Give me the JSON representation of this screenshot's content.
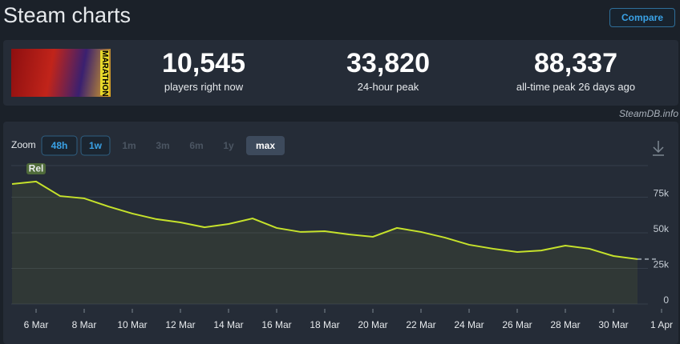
{
  "header": {
    "title": "Steam charts",
    "compare": "Compare",
    "source": "SteamDB.info",
    "game_logo": "MARATHON"
  },
  "stats": [
    {
      "value": "10,545",
      "label": "players right now"
    },
    {
      "value": "33,820",
      "label": "24-hour peak"
    },
    {
      "value": "88,337",
      "label": "all-time peak 26 days ago"
    }
  ],
  "zoom": {
    "label": "Zoom",
    "options": [
      "48h",
      "1w",
      "1m",
      "3m",
      "6m",
      "1y",
      "max"
    ]
  },
  "chart_data": {
    "type": "line",
    "color": "#c6e22b",
    "grid": true,
    "categories": [
      null,
      "6 Mar",
      null,
      "8 Mar",
      null,
      "10 Mar",
      null,
      "12 Mar",
      null,
      "14 Mar",
      null,
      "16 Mar",
      null,
      "18 Mar",
      null,
      "20 Mar",
      null,
      "22 Mar",
      null,
      "24 Mar",
      null,
      "26 Mar",
      null,
      "28 Mar",
      null,
      "30 Mar",
      null,
      "1 Apr"
    ],
    "values": [
      84300,
      86000,
      75800,
      74200,
      68500,
      63500,
      59600,
      57300,
      53900,
      56200,
      60100,
      53400,
      50600,
      51100,
      48900,
      47200,
      53400,
      50600,
      46600,
      41600,
      38800,
      36500,
      37600,
      41000,
      38800,
      33700,
      31500,
      null
    ],
    "annotation": {
      "label": "Rel",
      "index": 1
    },
    "ylim": [
      0,
      100000
    ],
    "yticks": [
      {
        "value": 0,
        "label": "0"
      },
      {
        "value": 25000,
        "label": "25k"
      },
      {
        "value": 50000,
        "label": "50k"
      },
      {
        "value": 75000,
        "label": "75k"
      }
    ]
  }
}
